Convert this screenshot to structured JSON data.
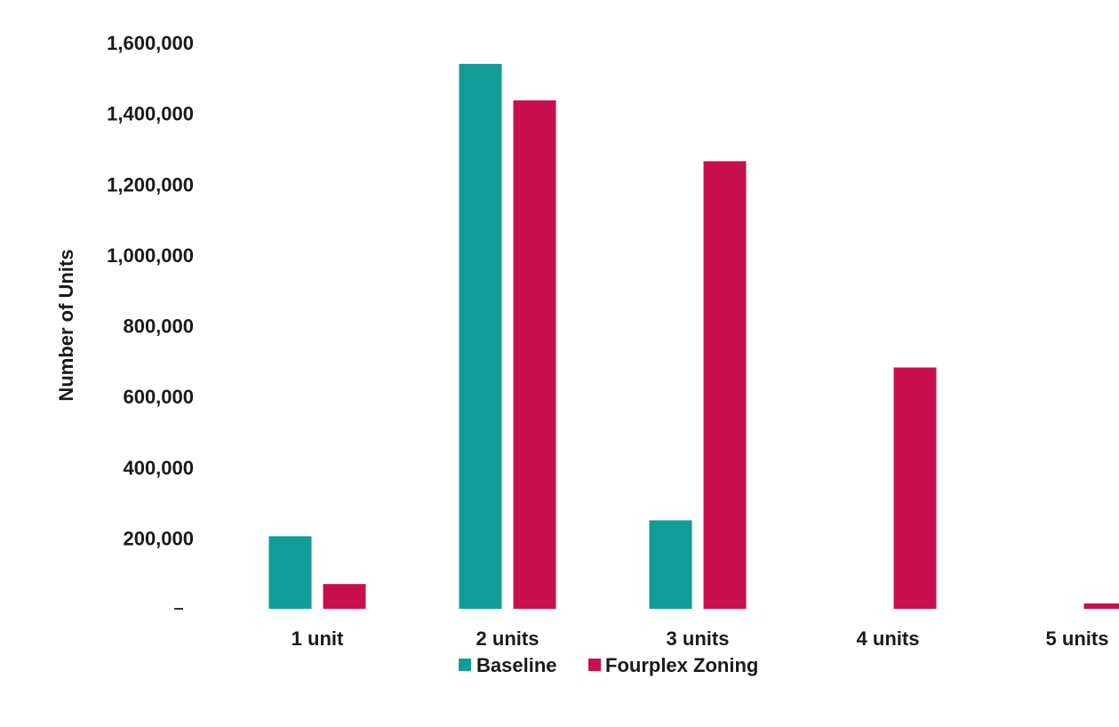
{
  "chart_data": {
    "type": "bar",
    "title": "",
    "xlabel": "",
    "ylabel": "Number of Units",
    "ylim": [
      0,
      1600000
    ],
    "yticks": [
      {
        "value": 0,
        "label": ""
      },
      {
        "value": 200000,
        "label": "200,000"
      },
      {
        "value": 400000,
        "label": "400,000"
      },
      {
        "value": 600000,
        "label": "600,000"
      },
      {
        "value": 800000,
        "label": "800,000"
      },
      {
        "value": 1000000,
        "label": "1,000,000"
      },
      {
        "value": 1200000,
        "label": "1,200,000"
      },
      {
        "value": 1400000,
        "label": "1,400,000"
      },
      {
        "value": 1600000,
        "label": "1,600,000"
      }
    ],
    "categories": [
      "1 unit",
      "2 units",
      "3 units",
      "4 units",
      "5 units"
    ],
    "series": [
      {
        "name": "Baseline",
        "color": "#119c98",
        "values": [
          205000,
          1540000,
          250000,
          0,
          0
        ]
      },
      {
        "name": "Fourplex Zoning",
        "color": "#c8104e",
        "values": [
          70000,
          1437000,
          1265000,
          682000,
          15000
        ]
      }
    ],
    "grid": false,
    "legend_position": "bottom"
  }
}
